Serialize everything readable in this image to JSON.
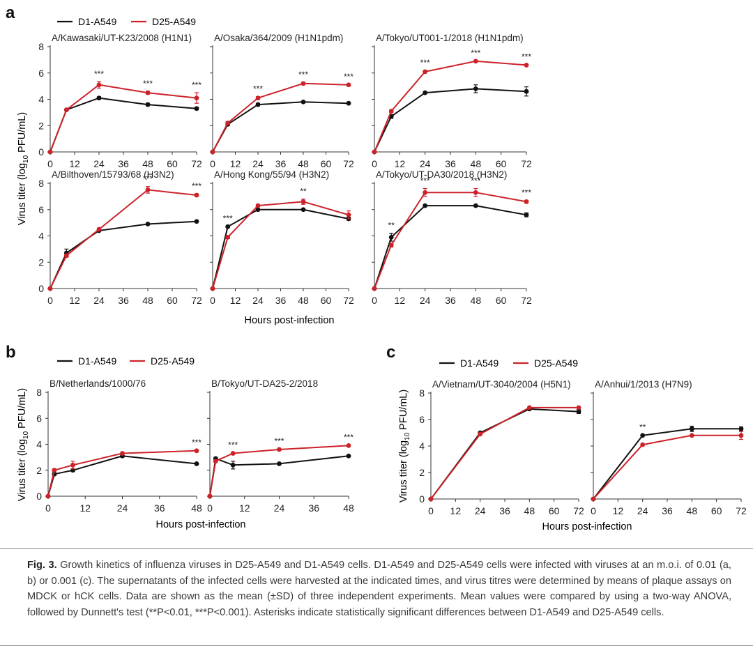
{
  "colors": {
    "d1": "#111111",
    "d25": "#cc2229",
    "axis": "#333333",
    "text": "#222222"
  },
  "legend": {
    "d1": "D1-A549",
    "d25": "D25-A549"
  },
  "panel_letters": {
    "a": "a",
    "b": "b",
    "c": "c"
  },
  "axis_labels": {
    "ylabel_prefix": "Virus titer (log",
    "ylabel_sub": "10",
    "ylabel_suffix": " PFU/mL)",
    "xlabel": "Hours post-infection"
  },
  "caption": {
    "label": "Fig. 3.",
    "text": " Growth kinetics of influenza viruses in D25-A549 and D1-A549 cells. D1-A549 and D25-A549 cells were infected with viruses at an m.o.i. of 0.01 (a, b) or 0.001 (c). The supernatants of the infected cells were harvested at the indicated times, and virus titres were determined by means of plaque assays on MDCK or hCK cells. Data are shown as the mean (±SD) of three independent experiments. Mean values were compared by using a two-way ANOVA, followed by Dunnett's test (**P<0.01, ***P<0.001). Asterisks indicate statistically significant differences between D1-A549 and D25-A549 cells."
  },
  "chart_data": [
    {
      "type": "line",
      "panel": "a",
      "title": "A/Kawasaki/UT-K23/2008 (H1N1)",
      "xlabel": "Hours post-infection",
      "ylabel": "Virus titer (log10 PFU/mL)",
      "xlim": [
        0,
        72
      ],
      "ylim": [
        0,
        8
      ],
      "xticks": [
        0,
        12,
        24,
        36,
        48,
        60,
        72
      ],
      "yticks": [
        0,
        2,
        4,
        6,
        8
      ],
      "series": [
        {
          "name": "D1-A549",
          "x": [
            0,
            8,
            24,
            48,
            72
          ],
          "y": [
            0,
            3.2,
            4.1,
            3.6,
            3.3
          ],
          "err": [
            0,
            0.05,
            0.1,
            0.1,
            0.1
          ]
        },
        {
          "name": "D25-A549",
          "x": [
            0,
            8,
            24,
            48,
            72
          ],
          "y": [
            0,
            3.2,
            5.1,
            4.5,
            4.1
          ],
          "err": [
            0,
            0.05,
            0.25,
            0.1,
            0.4
          ]
        }
      ],
      "annotations": [
        {
          "x": 24,
          "text": "***"
        },
        {
          "x": 48,
          "text": "***"
        },
        {
          "x": 72,
          "text": "***"
        }
      ]
    },
    {
      "type": "line",
      "panel": "a",
      "title": "A/Osaka/364/2009 (H1N1pdm)",
      "xlim": [
        0,
        72
      ],
      "ylim": [
        0,
        8
      ],
      "xticks": [
        0,
        12,
        24,
        36,
        48,
        60,
        72
      ],
      "yticks": [
        0,
        2,
        4,
        6,
        8
      ],
      "series": [
        {
          "name": "D1-A549",
          "x": [
            0,
            8,
            24,
            48,
            72
          ],
          "y": [
            0,
            2.1,
            3.6,
            3.8,
            3.7
          ],
          "err": [
            0,
            0.1,
            0.1,
            0.05,
            0.05
          ]
        },
        {
          "name": "D25-A549",
          "x": [
            0,
            8,
            24,
            48,
            72
          ],
          "y": [
            0,
            2.2,
            4.1,
            5.2,
            5.1
          ],
          "err": [
            0,
            0.1,
            0.1,
            0.1,
            0.05
          ]
        }
      ],
      "annotations": [
        {
          "x": 24,
          "text": "***"
        },
        {
          "x": 48,
          "text": "***"
        },
        {
          "x": 72,
          "text": "***"
        }
      ]
    },
    {
      "type": "line",
      "panel": "a",
      "title": "A/Tokyo/UT001-1/2018 (H1N1pdm)",
      "xlim": [
        0,
        72
      ],
      "ylim": [
        0,
        8
      ],
      "xticks": [
        0,
        12,
        24,
        36,
        48,
        60,
        72
      ],
      "yticks": [
        0,
        2,
        4,
        6,
        8
      ],
      "series": [
        {
          "name": "D1-A549",
          "x": [
            0,
            8,
            24,
            48,
            72
          ],
          "y": [
            0,
            2.7,
            4.5,
            4.8,
            4.6
          ],
          "err": [
            0,
            0.15,
            0.05,
            0.3,
            0.35
          ]
        },
        {
          "name": "D25-A549",
          "x": [
            0,
            8,
            24,
            48,
            72
          ],
          "y": [
            0,
            3.1,
            6.1,
            6.9,
            6.6
          ],
          "err": [
            0,
            0.1,
            0.1,
            0.05,
            0.05
          ]
        }
      ],
      "annotations": [
        {
          "x": 24,
          "text": "***"
        },
        {
          "x": 48,
          "text": "***"
        },
        {
          "x": 72,
          "text": "***"
        }
      ]
    },
    {
      "type": "line",
      "panel": "a",
      "title": "A/Bilthoven/15793/68 (H3N2)",
      "xlim": [
        0,
        72
      ],
      "ylim": [
        0,
        8
      ],
      "xticks": [
        0,
        12,
        24,
        36,
        48,
        60,
        72
      ],
      "yticks": [
        0,
        2,
        4,
        6,
        8
      ],
      "series": [
        {
          "name": "D1-A549",
          "x": [
            0,
            8,
            24,
            48,
            72
          ],
          "y": [
            0,
            2.7,
            4.4,
            4.9,
            5.1
          ],
          "err": [
            0,
            0.3,
            0.05,
            0.05,
            0.05
          ]
        },
        {
          "name": "D25-A549",
          "x": [
            0,
            8,
            24,
            48,
            72
          ],
          "y": [
            0,
            2.5,
            4.5,
            7.5,
            7.1
          ],
          "err": [
            0,
            0.1,
            0.05,
            0.25,
            0.1
          ]
        }
      ],
      "annotations": [
        {
          "x": 48,
          "text": "***"
        },
        {
          "x": 72,
          "text": "***"
        }
      ]
    },
    {
      "type": "line",
      "panel": "a",
      "title": "A/Hong Kong/55/94 (H3N2)",
      "xlim": [
        0,
        72
      ],
      "ylim": [
        0,
        8
      ],
      "xticks": [
        0,
        12,
        24,
        36,
        48,
        60,
        72
      ],
      "yticks": [
        0,
        2,
        4,
        6,
        8
      ],
      "series": [
        {
          "name": "D1-A549",
          "x": [
            0,
            8,
            24,
            48,
            72
          ],
          "y": [
            0,
            4.7,
            6.0,
            6.0,
            5.3
          ],
          "err": [
            0,
            0.05,
            0.05,
            0.05,
            0.1
          ]
        },
        {
          "name": "D25-A549",
          "x": [
            0,
            8,
            24,
            48,
            72
          ],
          "y": [
            0,
            3.9,
            6.3,
            6.6,
            5.6
          ],
          "err": [
            0,
            0.1,
            0.05,
            0.2,
            0.3
          ]
        }
      ],
      "annotations": [
        {
          "x": 8,
          "text": "***"
        },
        {
          "x": 48,
          "text": "**"
        }
      ]
    },
    {
      "type": "line",
      "panel": "a",
      "title": "A/Tokyo/UT-DA30/2018 (H3N2)",
      "xlim": [
        0,
        72
      ],
      "ylim": [
        0,
        8
      ],
      "xticks": [
        0,
        12,
        24,
        36,
        48,
        60,
        72
      ],
      "yticks": [
        0,
        2,
        4,
        6,
        8
      ],
      "series": [
        {
          "name": "D1-A549",
          "x": [
            0,
            8,
            24,
            48,
            72
          ],
          "y": [
            0,
            3.9,
            6.3,
            6.3,
            5.6
          ],
          "err": [
            0,
            0.3,
            0.05,
            0.05,
            0.15
          ]
        },
        {
          "name": "D25-A549",
          "x": [
            0,
            8,
            24,
            48,
            72
          ],
          "y": [
            0,
            3.3,
            7.3,
            7.3,
            6.6
          ],
          "err": [
            0,
            0.15,
            0.3,
            0.3,
            0.1
          ]
        }
      ],
      "annotations": [
        {
          "x": 8,
          "text": "**"
        },
        {
          "x": 24,
          "text": "***"
        },
        {
          "x": 48,
          "text": "***"
        },
        {
          "x": 72,
          "text": "***"
        }
      ]
    },
    {
      "type": "line",
      "panel": "b",
      "title": "B/Netherlands/1000/76",
      "xlim": [
        0,
        48
      ],
      "ylim": [
        0,
        8
      ],
      "xticks": [
        0,
        12,
        24,
        36,
        48
      ],
      "yticks": [
        0,
        2,
        4,
        6,
        8
      ],
      "series": [
        {
          "name": "D1-A549",
          "x": [
            0,
            2,
            8,
            24,
            48
          ],
          "y": [
            0,
            1.7,
            2.0,
            3.1,
            2.5
          ],
          "err": [
            0,
            0.1,
            0.1,
            0.1,
            0.05
          ]
        },
        {
          "name": "D25-A549",
          "x": [
            0,
            2,
            8,
            24,
            48
          ],
          "y": [
            0,
            2.0,
            2.4,
            3.3,
            3.5
          ],
          "err": [
            0,
            0.1,
            0.3,
            0.05,
            0.05
          ]
        }
      ],
      "annotations": [
        {
          "x": 48,
          "text": "***"
        }
      ]
    },
    {
      "type": "line",
      "panel": "b",
      "title": "B/Tokyo/UT-DA25-2/2018",
      "xlim": [
        0,
        48
      ],
      "ylim": [
        0,
        8
      ],
      "xticks": [
        0,
        12,
        24,
        36,
        48
      ],
      "yticks": [
        0,
        2,
        4,
        6,
        8
      ],
      "series": [
        {
          "name": "D1-A549",
          "x": [
            0,
            2,
            8,
            24,
            48
          ],
          "y": [
            0,
            2.9,
            2.4,
            2.5,
            3.1
          ],
          "err": [
            0,
            0.1,
            0.3,
            0.05,
            0.05
          ]
        },
        {
          "name": "D25-A549",
          "x": [
            0,
            2,
            8,
            24,
            48
          ],
          "y": [
            0,
            2.7,
            3.3,
            3.6,
            3.9
          ],
          "err": [
            0,
            0.1,
            0.05,
            0.05,
            0.05
          ]
        }
      ],
      "annotations": [
        {
          "x": 8,
          "text": "***"
        },
        {
          "x": 24,
          "text": "***"
        },
        {
          "x": 48,
          "text": "***"
        }
      ]
    },
    {
      "type": "line",
      "panel": "c",
      "title": "A/Vietnam/UT-3040/2004 (H5N1)",
      "xlim": [
        0,
        72
      ],
      "ylim": [
        0,
        8
      ],
      "xticks": [
        0,
        12,
        24,
        36,
        48,
        60,
        72
      ],
      "yticks": [
        0,
        2,
        4,
        6,
        8
      ],
      "series": [
        {
          "name": "D1-A549",
          "x": [
            0,
            24,
            48,
            72
          ],
          "y": [
            0,
            5.0,
            6.8,
            6.6
          ],
          "err": [
            0,
            0.05,
            0.05,
            0.15
          ]
        },
        {
          "name": "D25-A549",
          "x": [
            0,
            24,
            48,
            72
          ],
          "y": [
            0,
            4.9,
            6.9,
            6.9
          ],
          "err": [
            0,
            0.05,
            0.05,
            0.05
          ]
        }
      ],
      "annotations": []
    },
    {
      "type": "line",
      "panel": "c",
      "title": "A/Anhui/1/2013 (H7N9)",
      "xlim": [
        0,
        72
      ],
      "ylim": [
        0,
        8
      ],
      "xticks": [
        0,
        12,
        24,
        36,
        48,
        60,
        72
      ],
      "yticks": [
        0,
        2,
        4,
        6,
        8
      ],
      "series": [
        {
          "name": "D1-A549",
          "x": [
            0,
            24,
            48,
            72
          ],
          "y": [
            0,
            4.8,
            5.3,
            5.3
          ],
          "err": [
            0,
            0.05,
            0.2,
            0.15
          ]
        },
        {
          "name": "D25-A549",
          "x": [
            0,
            24,
            48,
            72
          ],
          "y": [
            0,
            4.1,
            4.8,
            4.8
          ],
          "err": [
            0,
            0.05,
            0.05,
            0.3
          ]
        }
      ],
      "annotations": [
        {
          "x": 24,
          "text": "**"
        }
      ]
    }
  ]
}
